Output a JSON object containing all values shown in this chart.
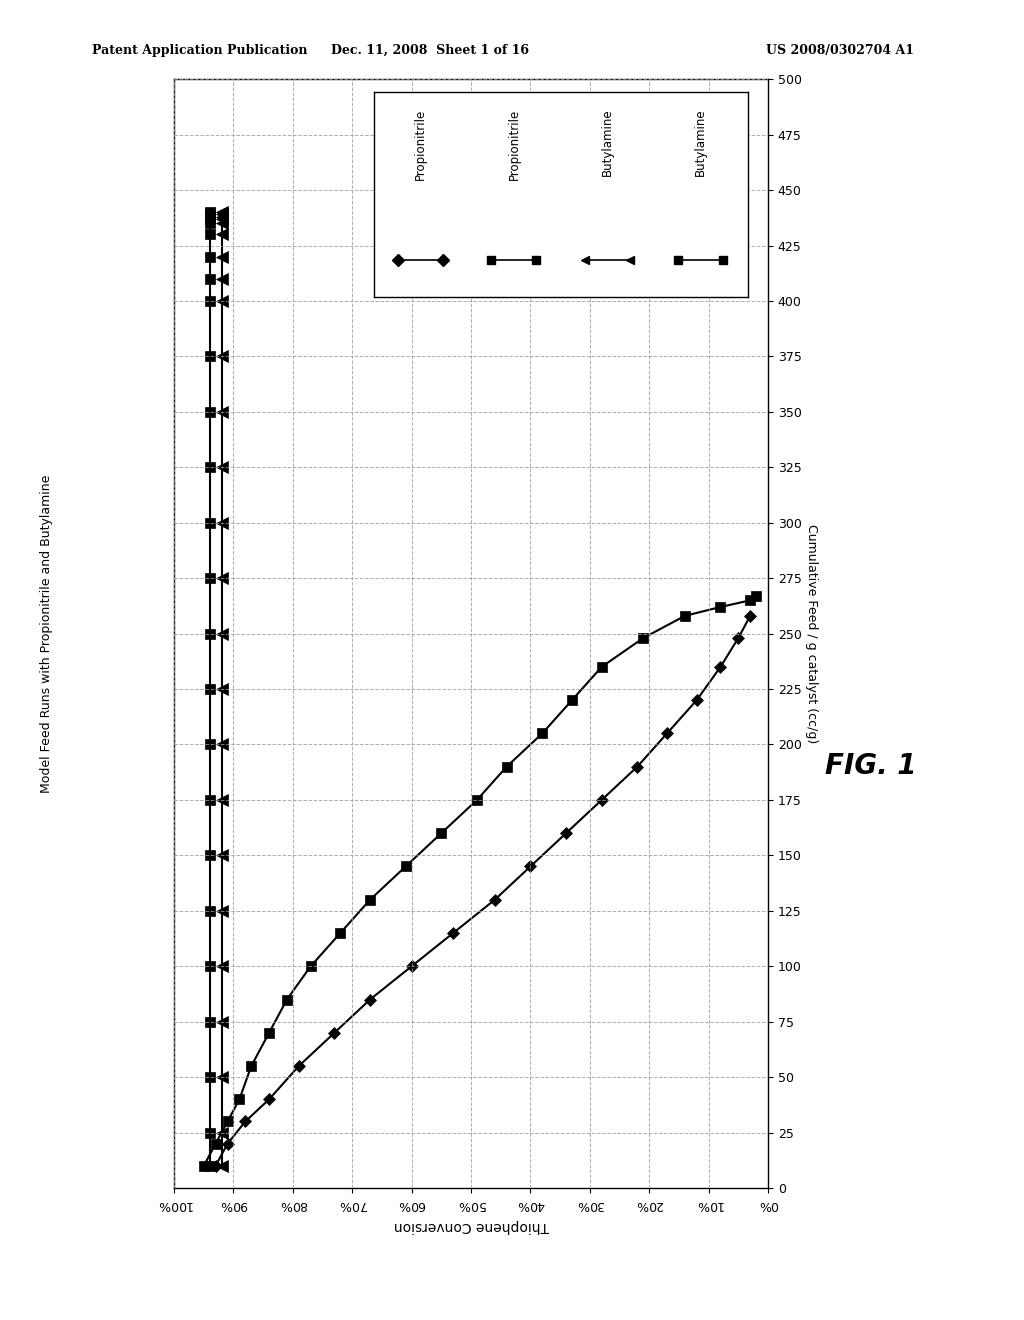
{
  "title": "Model Feed Runs with Propionitrile and Butylamine",
  "xlabel_bottom": "Thiophene Conversion",
  "ylabel_right": "Cumulative Feed / g catalyst (cc/g)",
  "fig1_label": "FIG. 1",
  "header_left": "Patent Application Publication",
  "header_mid": "Dec. 11, 2008  Sheet 1 of 16",
  "header_right": "US 2008/0302704 A1",
  "xlim": [
    0.0,
    1.0
  ],
  "ylim": [
    0,
    500
  ],
  "xticks": [
    0.0,
    0.1,
    0.2,
    0.3,
    0.4,
    0.5,
    0.6,
    0.7,
    0.8,
    0.9,
    1.0
  ],
  "xtick_labels": [
    "0%",
    "10%",
    "20%",
    "30%",
    "40%",
    "50%",
    "60%",
    "70%",
    "80%",
    "90%",
    "100%"
  ],
  "yticks": [
    0,
    25,
    50,
    75,
    100,
    125,
    150,
    175,
    200,
    225,
    250,
    275,
    300,
    325,
    350,
    375,
    400,
    425,
    450,
    475,
    500
  ],
  "series": [
    {
      "label": "Propionitrile",
      "marker": "D",
      "markersize": 6,
      "x_conv": [
        0.93,
        0.91,
        0.88,
        0.84,
        0.79,
        0.73,
        0.67,
        0.6,
        0.53,
        0.46,
        0.4,
        0.34,
        0.28,
        0.22,
        0.17,
        0.12,
        0.08,
        0.05,
        0.03
      ],
      "y_feed": [
        10,
        20,
        30,
        40,
        55,
        70,
        85,
        100,
        115,
        130,
        145,
        160,
        175,
        190,
        205,
        220,
        235,
        248,
        258
      ]
    },
    {
      "label": "Propionitrile",
      "marker": "s",
      "markersize": 7,
      "x_conv": [
        0.95,
        0.93,
        0.91,
        0.89,
        0.87,
        0.84,
        0.81,
        0.77,
        0.72,
        0.67,
        0.61,
        0.55,
        0.49,
        0.44,
        0.38,
        0.33,
        0.28,
        0.21,
        0.14,
        0.08,
        0.03,
        0.02
      ],
      "y_feed": [
        10,
        20,
        30,
        40,
        55,
        70,
        85,
        100,
        115,
        130,
        145,
        160,
        175,
        190,
        205,
        220,
        235,
        248,
        258,
        262,
        265,
        267
      ]
    },
    {
      "label": "Butylamine",
      "marker": "<",
      "markersize": 8,
      "x_conv": [
        0.92,
        0.92,
        0.92,
        0.92,
        0.92,
        0.92,
        0.92,
        0.92,
        0.92,
        0.92,
        0.92,
        0.92,
        0.92,
        0.92,
        0.92,
        0.92,
        0.92,
        0.92,
        0.92,
        0.92,
        0.92,
        0.92,
        0.92,
        0.92,
        0.92
      ],
      "y_feed": [
        10,
        25,
        50,
        75,
        100,
        125,
        150,
        175,
        200,
        225,
        250,
        275,
        300,
        325,
        350,
        375,
        400,
        410,
        420,
        430,
        435,
        437,
        438,
        439,
        440
      ]
    },
    {
      "label": "Butylamine",
      "marker": "s",
      "markersize": 7,
      "x_conv": [
        0.94,
        0.94,
        0.94,
        0.94,
        0.94,
        0.94,
        0.94,
        0.94,
        0.94,
        0.94,
        0.94,
        0.94,
        0.94,
        0.94,
        0.94,
        0.94,
        0.94,
        0.94,
        0.94,
        0.94,
        0.94,
        0.94,
        0.94,
        0.94,
        0.94
      ],
      "y_feed": [
        10,
        25,
        50,
        75,
        100,
        125,
        150,
        175,
        200,
        225,
        250,
        275,
        300,
        325,
        350,
        375,
        400,
        410,
        420,
        430,
        435,
        437,
        438,
        439,
        440
      ]
    }
  ],
  "legend_labels": [
    "Propionitrile",
    "Propionitrile",
    "Butylamine",
    "Butylamine"
  ],
  "legend_markers": [
    "D",
    "s",
    "<",
    "s"
  ],
  "background_color": "#ffffff",
  "grid_color": "#999999"
}
